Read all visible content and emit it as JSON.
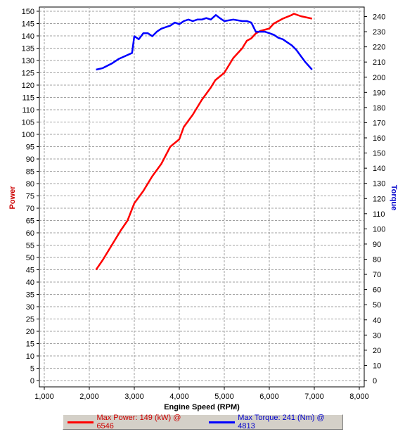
{
  "chart_data": {
    "type": "line",
    "xlabel": "Engine Speed (RPM)",
    "ylabel_left": "Power",
    "ylabel_right": "Torque",
    "xlim": [
      1000,
      8000
    ],
    "x_ticks": [
      "1,000",
      "2,000",
      "3,000",
      "4,000",
      "5,000",
      "6,000",
      "7,000",
      "8,000"
    ],
    "ylim_left": [
      0,
      150
    ],
    "ylim_right": [
      0,
      240
    ],
    "grid": true,
    "legend_position": "bottom",
    "colors": {
      "power": "#ff0000",
      "torque": "#0000ff",
      "axis_power": "#cc0000",
      "axis_torque": "#0000cc"
    },
    "series": [
      {
        "name": "Power",
        "axis": "left",
        "x": [
          2150,
          2300,
          2500,
          2700,
          2850,
          3000,
          3200,
          3400,
          3600,
          3800,
          4000,
          4100,
          4300,
          4500,
          4700,
          4800,
          5000,
          5200,
          5400,
          5500,
          5600,
          5700,
          5800,
          6000,
          6100,
          6300,
          6500,
          6546,
          6700,
          6950
        ],
        "values": [
          45,
          49,
          55,
          61,
          65,
          72,
          77,
          83,
          88,
          95,
          98,
          103,
          108,
          114,
          119,
          122,
          125,
          131,
          135,
          138,
          139,
          141,
          142,
          143,
          145,
          147,
          148.5,
          149,
          148,
          147
        ]
      },
      {
        "name": "Torque",
        "axis": "right",
        "x": [
          2150,
          2300,
          2500,
          2650,
          2800,
          2950,
          3000,
          3100,
          3200,
          3300,
          3400,
          3500,
          3600,
          3700,
          3800,
          3900,
          4000,
          4100,
          4200,
          4300,
          4400,
          4500,
          4600,
          4700,
          4813,
          4900,
          5000,
          5200,
          5400,
          5500,
          5600,
          5700,
          5800,
          5900,
          6000,
          6100,
          6200,
          6300,
          6400,
          6500,
          6600,
          6700,
          6800,
          6950
        ],
        "values": [
          205,
          206,
          209,
          212,
          214,
          216,
          227,
          225,
          229,
          229,
          227,
          230,
          232,
          233,
          234,
          236,
          235,
          237,
          238,
          237,
          238,
          238,
          239,
          238,
          241,
          239,
          237,
          238,
          237,
          237,
          236,
          230,
          230,
          230,
          229,
          228,
          226,
          225,
          223,
          221,
          218,
          214,
          210,
          205
        ]
      }
    ]
  },
  "legend": {
    "power": "Max Power: 149 (kW) @ 6546",
    "torque": "Max Torque: 241 (Nm) @ 4813"
  }
}
